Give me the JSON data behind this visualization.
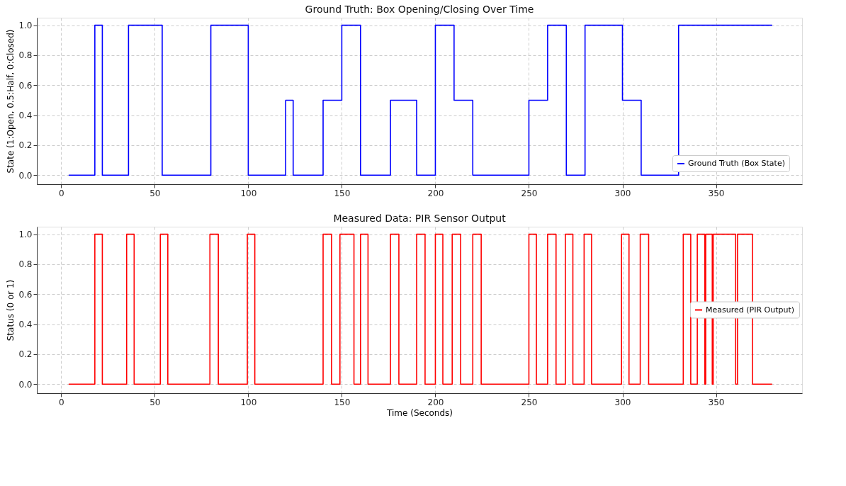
{
  "chart_data": [
    {
      "type": "step",
      "title": "Ground Truth: Box Opening/Closing Over Time",
      "ylabel": "State (1:Open, 0.5:Half, 0:Closed)",
      "x": [
        4,
        18,
        22,
        36,
        54,
        80,
        100,
        120,
        124,
        140,
        150,
        160,
        176,
        190,
        200,
        210,
        220,
        250,
        260,
        270,
        280,
        300,
        310,
        330,
        380
      ],
      "series": [
        {
          "name": "Ground Truth (Box State)",
          "color": "#0000ff",
          "values": [
            0,
            1,
            0,
            1,
            0,
            1,
            0,
            0.5,
            0,
            0.5,
            1,
            0,
            0.5,
            0,
            1,
            0.5,
            0,
            0.5,
            1,
            0,
            1,
            0.5,
            0,
            1,
            1
          ]
        }
      ],
      "xlim": [
        -13,
        396
      ],
      "xticks": [
        0,
        50,
        100,
        150,
        200,
        250,
        300,
        350
      ],
      "ylim": [
        -0.06,
        1.05
      ],
      "yticks": [
        {
          "value": 0,
          "label": "0.0"
        },
        {
          "value": 0.2,
          "label": "0.2"
        },
        {
          "value": 0.4,
          "label": "0.4"
        },
        {
          "value": 0.6,
          "label": "0.6"
        },
        {
          "value": 0.8,
          "label": "0.8"
        },
        {
          "value": 1,
          "label": "1.0"
        }
      ],
      "grid": true,
      "legend": "bottom right",
      "line_style": "solid"
    },
    {
      "type": "step",
      "title": "Measured Data: PIR Sensor Output",
      "xlabel": "Time (Seconds)",
      "ylabel": "Status (0 or 1)",
      "x": [
        4,
        18,
        22,
        35,
        39,
        53,
        57,
        79.5,
        84,
        99.5,
        103.5,
        140,
        144.5,
        149,
        156.5,
        160,
        164,
        176,
        180.5,
        190,
        194.5,
        200,
        204,
        209,
        213.5,
        220,
        224.5,
        250,
        254,
        260,
        264.5,
        269.5,
        273.5,
        279.5,
        283.5,
        299.5,
        303.5,
        309.5,
        314,
        332.5,
        336.5,
        340,
        344,
        344.5,
        348,
        348.5,
        360.5,
        361.5,
        369.5,
        380
      ],
      "series": [
        {
          "name": "Measured (PIR Output)",
          "color": "#ff0000",
          "values": [
            0,
            1,
            0,
            1,
            0,
            1,
            0,
            1,
            0,
            1,
            0,
            1,
            0,
            1,
            0,
            1,
            0,
            1,
            0,
            1,
            0,
            1,
            0,
            1,
            0,
            1,
            0,
            1,
            0,
            1,
            0,
            1,
            0,
            1,
            0,
            1,
            0,
            1,
            0,
            1,
            0,
            1,
            0,
            1,
            0,
            1,
            0,
            1,
            0,
            0
          ]
        }
      ],
      "xlim": [
        -13,
        396
      ],
      "xticks": [
        0,
        50,
        100,
        150,
        200,
        250,
        300,
        350
      ],
      "ylim": [
        -0.06,
        1.05
      ],
      "yticks": [
        {
          "value": 0,
          "label": "0.0"
        },
        {
          "value": 0.2,
          "label": "0.2"
        },
        {
          "value": 0.4,
          "label": "0.4"
        },
        {
          "value": 0.6,
          "label": "0.6"
        },
        {
          "value": 0.8,
          "label": "0.8"
        },
        {
          "value": 1,
          "label": "1.0"
        }
      ],
      "grid": true,
      "legend": "right",
      "line_style": "solid"
    }
  ]
}
